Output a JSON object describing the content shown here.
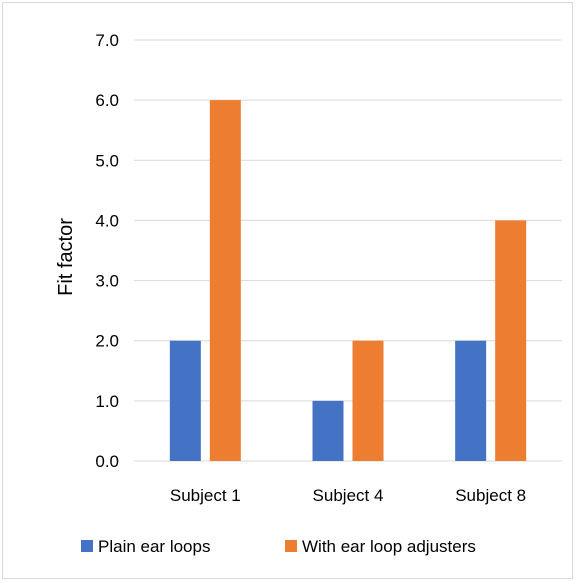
{
  "chart_data": {
    "type": "bar",
    "categories": [
      "Subject 1",
      "Subject 4",
      "Subject 8"
    ],
    "series": [
      {
        "name": "Plain ear loops",
        "values": [
          2.0,
          1.0,
          2.0
        ],
        "color": "#4472C4"
      },
      {
        "name": "With ear loop adjusters",
        "values": [
          6.0,
          2.0,
          4.0
        ],
        "color": "#ED7D31"
      }
    ],
    "title": "",
    "xlabel": "",
    "ylabel": "Fit factor",
    "ylim": [
      0,
      7
    ],
    "yticks": [
      "0.0",
      "1.0",
      "2.0",
      "3.0",
      "4.0",
      "5.0",
      "6.0",
      "7.0"
    ],
    "grid": true,
    "legend_position": "bottom",
    "gridline_color": "#d9d9d9"
  }
}
